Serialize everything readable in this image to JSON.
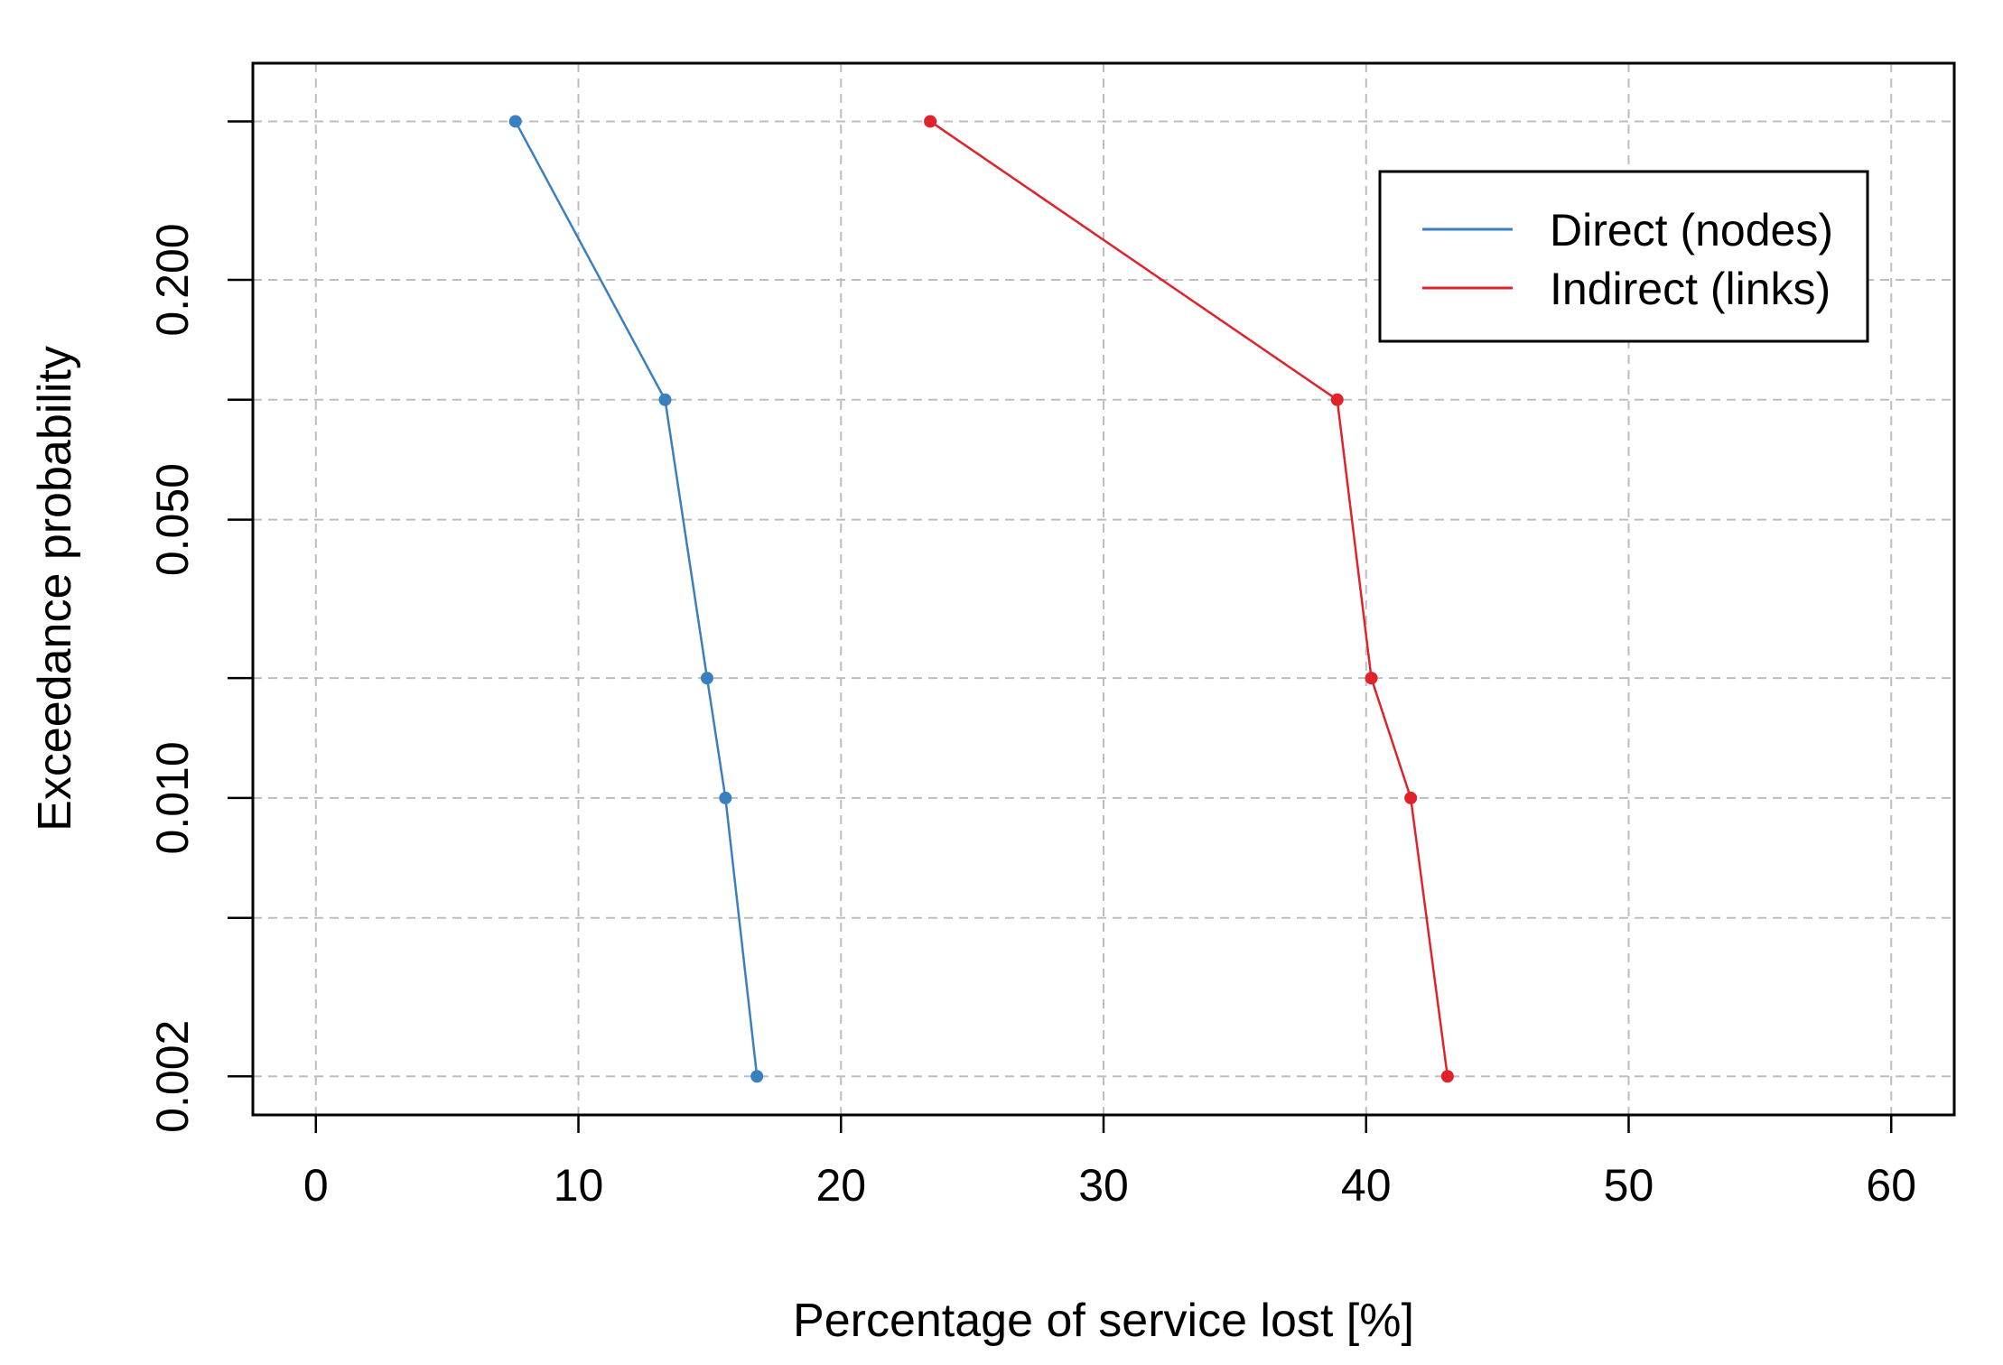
{
  "chart_data": {
    "type": "line",
    "xlabel": "Percentage of service lost [%]",
    "ylabel": "Exceedance probability",
    "xlim": [
      -2.4,
      62.4
    ],
    "x_ticks": [
      0,
      10,
      20,
      30,
      40,
      50,
      60
    ],
    "x_tick_labels": [
      "0",
      "10",
      "20",
      "30",
      "40",
      "50",
      "60"
    ],
    "y_scale": "log",
    "ylim": [
      0.0016,
      0.7
    ],
    "y_ticks": [
      0.002,
      0.005,
      0.01,
      0.02,
      0.05,
      0.1,
      0.2,
      0.5
    ],
    "y_tick_labels": [
      "0.002",
      "",
      "0.010",
      "",
      "0.050",
      "",
      "0.200",
      ""
    ],
    "grid": true,
    "legend_position": "top-right",
    "series": [
      {
        "name": "Direct (nodes)",
        "color": "#3a7fc0",
        "x": [
          7.6,
          13.3,
          14.9,
          15.6,
          16.8
        ],
        "y": [
          0.5,
          0.1,
          0.02,
          0.01,
          0.002
        ]
      },
      {
        "name": "Indirect (links)",
        "color": "#e0222a",
        "x": [
          23.4,
          38.9,
          40.2,
          41.7,
          43.1
        ],
        "y": [
          0.5,
          0.1,
          0.02,
          0.01,
          0.002
        ]
      }
    ]
  }
}
